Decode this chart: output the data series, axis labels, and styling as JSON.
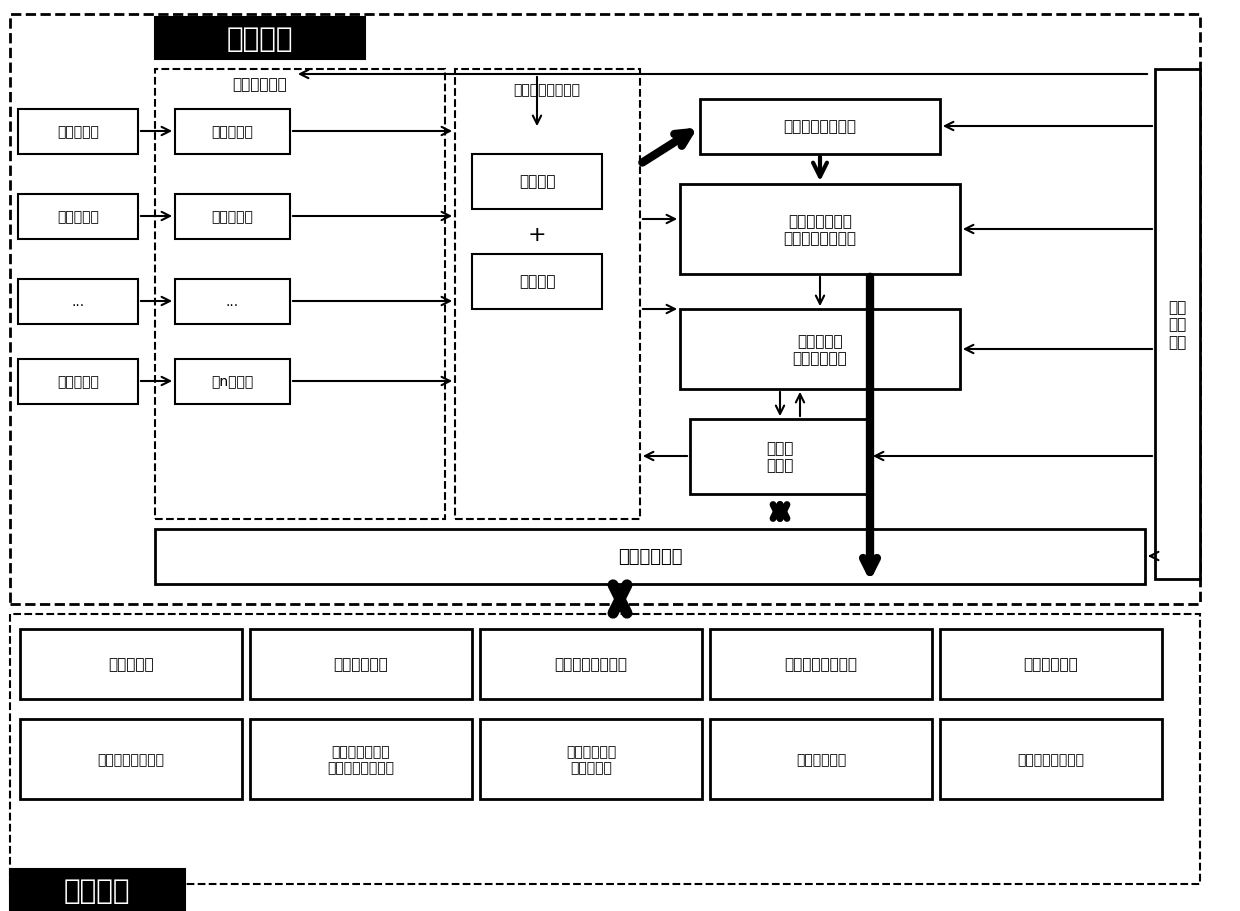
{
  "title": "",
  "bg_color": "#ffffff",
  "hardware_label": "硬件部分",
  "software_label": "软件部分",
  "data_collection_label": "数据采集系统",
  "delay_system_label": "数据延迟调整系统",
  "detectors": [
    "光电探测器",
    "光电探测器",
    "...",
    "光电探测器"
  ],
  "channels": [
    "第一个通道",
    "第二个通道",
    "...",
    "第n个通道"
  ],
  "delay_chain1": "粗延迟链",
  "plus_sign": "+",
  "delay_chain2": "细延迟链",
  "coincidence_window": "符合窗口设置系统",
  "channel_selection": "通道选择系统与\n符合数据处理系统",
  "collection_time": "采集时间和\n模式设置系统",
  "comprehensive": "综合控\n制系统",
  "serial_comm": "串口通信系统",
  "clock": "时钟\n调制\n系统",
  "sw_modules_row1": [
    "初始化模块",
    "通道选择模块",
    "符合窗口设置模块",
    "数据延迟设置模块",
    "数据显示模块"
  ],
  "sw_modules_row2": [
    "采集时间设置模块",
    "单次数据采集或\n连续数据采集模块",
    "数据延迟扫描\n与校准模块",
    "数据保存模块",
    "界面参数保存模块"
  ]
}
